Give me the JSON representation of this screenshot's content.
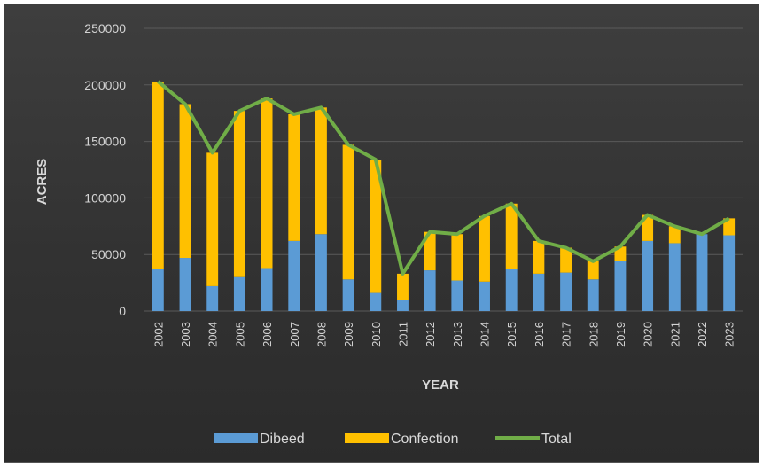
{
  "chart_data": {
    "type": "bar",
    "stacked": true,
    "xlabel": "YEAR",
    "ylabel": "ACRES",
    "ylim": [
      0,
      250000
    ],
    "yticks": [
      0,
      50000,
      100000,
      150000,
      200000,
      250000
    ],
    "grid": true,
    "legend_position": "bottom",
    "categories": [
      "2002",
      "2003",
      "2004",
      "2005",
      "2006",
      "2007",
      "2008",
      "2009",
      "2010",
      "2011",
      "2012",
      "2013",
      "2014",
      "2015",
      "2016",
      "2017",
      "2018",
      "2019",
      "2020",
      "2021",
      "2022",
      "2023"
    ],
    "series": [
      {
        "name": "Dibeed",
        "type": "bar",
        "color": "#5b9bd5",
        "values": [
          37000,
          47000,
          22000,
          30000,
          38000,
          62000,
          68000,
          28000,
          16000,
          10000,
          36000,
          27000,
          26000,
          37000,
          33000,
          34000,
          28000,
          44000,
          62000,
          60000,
          68000,
          67000
        ]
      },
      {
        "name": "Confection",
        "type": "bar",
        "color": "#ffc000",
        "values": [
          166000,
          136000,
          118000,
          147000,
          150000,
          112000,
          112000,
          119000,
          118000,
          23000,
          34000,
          41000,
          58000,
          58000,
          29000,
          22000,
          16000,
          13000,
          23000,
          15000,
          0,
          15000
        ]
      },
      {
        "name": "Total",
        "type": "line",
        "color": "#70ad47",
        "values": [
          203000,
          183000,
          140000,
          177000,
          188000,
          174000,
          180000,
          147000,
          134000,
          33000,
          70000,
          68000,
          84000,
          95000,
          62000,
          56000,
          44000,
          57000,
          85000,
          75000,
          68000,
          82000
        ]
      }
    ]
  }
}
